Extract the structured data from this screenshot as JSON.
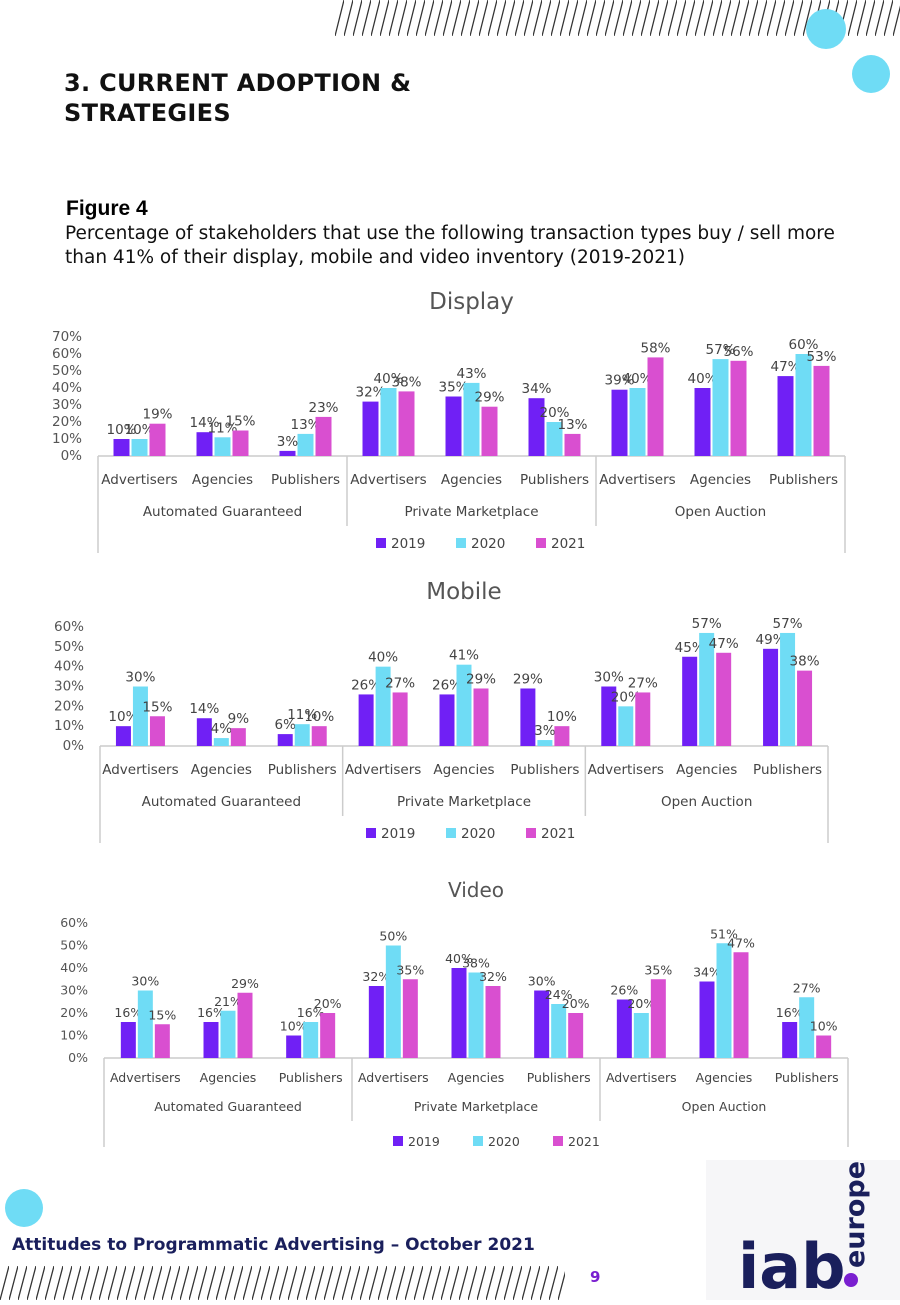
{
  "page": {
    "title_line1": "3. CURRENT ADOPTION &",
    "title_line2": "STRATEGIES",
    "figure_label": "Figure 4",
    "figure_caption": "Percentage of stakeholders that use the following transaction types buy / sell more than 41% of their display, mobile and video inventory (2019-2021)",
    "footer_text": "Attitudes to Programmatic Advertising – October 2021",
    "page_number": "9",
    "logo_text": "iab",
    "logo_subtext": "europe"
  },
  "colors": {
    "series_2019": "#7020f5",
    "series_2020": "#6fdcf5",
    "series_2021": "#d94fd0",
    "circle": "#6fdcf5",
    "footer": "#1a1f5c",
    "logo": "#1a1f5c",
    "logo_dot": "#7a1fd0"
  },
  "chart_data": [
    {
      "type": "bar",
      "title": "Display",
      "groups": [
        "Automated Guaranteed",
        "Private Marketplace",
        "Open Auction"
      ],
      "categories": [
        "Advertisers",
        "Agencies",
        "Publishers",
        "Advertisers",
        "Agencies",
        "Publishers",
        "Advertisers",
        "Agencies",
        "Publishers"
      ],
      "series": [
        {
          "name": "2019",
          "values": [
            10,
            14,
            3,
            32,
            35,
            34,
            39,
            40,
            47
          ]
        },
        {
          "name": "2020",
          "values": [
            10,
            11,
            13,
            40,
            43,
            20,
            40,
            57,
            60
          ]
        },
        {
          "name": "2021",
          "values": [
            19,
            15,
            23,
            38,
            29,
            13,
            58,
            56,
            53
          ]
        }
      ],
      "yticks": [
        "0%",
        "10%",
        "20%",
        "30%",
        "40%",
        "50%",
        "60%",
        "70%"
      ],
      "ylim": [
        0,
        70
      ],
      "legend": "bottom"
    },
    {
      "type": "bar",
      "title": "Mobile",
      "groups": [
        "Automated Guaranteed",
        "Private Marketplace",
        "Open Auction"
      ],
      "categories": [
        "Advertisers",
        "Agencies",
        "Publishers",
        "Advertisers",
        "Agencies",
        "Publishers",
        "Advertisers",
        "Agencies",
        "Publishers"
      ],
      "series": [
        {
          "name": "2019",
          "values": [
            10,
            14,
            6,
            26,
            26,
            29,
            30,
            45,
            49
          ]
        },
        {
          "name": "2020",
          "values": [
            30,
            4,
            11,
            40,
            41,
            3,
            20,
            57,
            57
          ]
        },
        {
          "name": "2021",
          "values": [
            15,
            9,
            10,
            27,
            29,
            10,
            27,
            47,
            38
          ]
        }
      ],
      "yticks": [
        "0%",
        "10%",
        "20%",
        "30%",
        "40%",
        "50%",
        "60%"
      ],
      "ylim": [
        0,
        60
      ],
      "legend": "bottom"
    },
    {
      "type": "bar",
      "title": "Video",
      "groups": [
        "Automated Guaranteed",
        "Private Marketplace",
        "Open Auction"
      ],
      "categories": [
        "Advertisers",
        "Agencies",
        "Publishers",
        "Advertisers",
        "Agencies",
        "Publishers",
        "Advertisers",
        "Agencies",
        "Publishers"
      ],
      "series": [
        {
          "name": "2019",
          "values": [
            16,
            16,
            10,
            32,
            40,
            30,
            26,
            34,
            16
          ]
        },
        {
          "name": "2020",
          "values": [
            30,
            21,
            16,
            50,
            38,
            24,
            20,
            51,
            27
          ]
        },
        {
          "name": "2021",
          "values": [
            15,
            29,
            20,
            35,
            32,
            20,
            35,
            47,
            10
          ]
        }
      ],
      "yticks": [
        "0%",
        "10%",
        "20%",
        "30%",
        "40%",
        "50%",
        "60%"
      ],
      "ylim": [
        0,
        60
      ],
      "legend": "bottom"
    }
  ]
}
